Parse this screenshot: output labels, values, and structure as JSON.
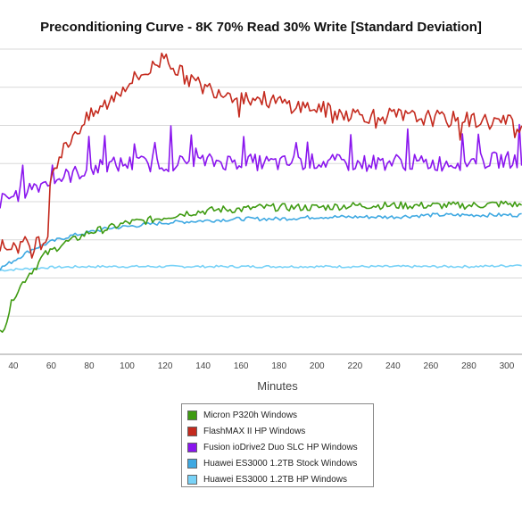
{
  "chart_data": {
    "type": "line",
    "title": "Preconditioning Curve - 8K 70% Read 30% Write [Standard Deviation]",
    "xlabel": "Minutes",
    "ylabel": "",
    "x_ticks": [
      "40",
      "60",
      "80",
      "100",
      "120",
      "140",
      "160",
      "180",
      "200",
      "220",
      "240",
      "260",
      "280",
      "300"
    ],
    "xlim": [
      33,
      308
    ],
    "ylim": [
      0,
      8
    ],
    "grid": true,
    "legend_position": "bottom-center",
    "series": [
      {
        "name": "Micron P320h Windows",
        "color": "#3f9b12",
        "points": [
          [
            33,
            0.6
          ],
          [
            36,
            0.8
          ],
          [
            40,
            1.5
          ],
          [
            44,
            1.8
          ],
          [
            48,
            2.1
          ],
          [
            52,
            2.3
          ],
          [
            56,
            2.6
          ],
          [
            60,
            2.7
          ],
          [
            66,
            2.9
          ],
          [
            72,
            3.0
          ],
          [
            80,
            3.2
          ],
          [
            90,
            3.3
          ],
          [
            100,
            3.45
          ],
          [
            110,
            3.5
          ],
          [
            120,
            3.6
          ],
          [
            130,
            3.7
          ],
          [
            140,
            3.75
          ],
          [
            150,
            3.8
          ],
          [
            160,
            3.8
          ],
          [
            170,
            3.85
          ],
          [
            180,
            3.85
          ],
          [
            190,
            3.85
          ],
          [
            200,
            3.85
          ],
          [
            220,
            3.9
          ],
          [
            240,
            3.9
          ],
          [
            260,
            3.9
          ],
          [
            280,
            3.9
          ],
          [
            300,
            3.95
          ],
          [
            308,
            3.9
          ]
        ],
        "noise": 0.1
      },
      {
        "name": "FlashMAX II HP Windows",
        "color": "#c42a1e",
        "points": [
          [
            33,
            2.8
          ],
          [
            40,
            2.85
          ],
          [
            50,
            2.9
          ],
          [
            58,
            3.0
          ],
          [
            59,
            4.5
          ],
          [
            62,
            5.0
          ],
          [
            66,
            5.3
          ],
          [
            72,
            5.8
          ],
          [
            80,
            6.2
          ],
          [
            90,
            6.6
          ],
          [
            100,
            7.1
          ],
          [
            110,
            7.4
          ],
          [
            116,
            7.6
          ],
          [
            120,
            7.9
          ],
          [
            125,
            7.5
          ],
          [
            130,
            7.3
          ],
          [
            140,
            7.0
          ],
          [
            150,
            6.9
          ],
          [
            160,
            6.75
          ],
          [
            170,
            6.7
          ],
          [
            180,
            6.6
          ],
          [
            190,
            6.5
          ],
          [
            200,
            6.45
          ],
          [
            210,
            6.35
          ],
          [
            220,
            6.3
          ],
          [
            230,
            6.25
          ],
          [
            240,
            6.25
          ],
          [
            250,
            6.2
          ],
          [
            260,
            6.2
          ],
          [
            270,
            6.15
          ],
          [
            280,
            6.15
          ],
          [
            290,
            6.1
          ],
          [
            300,
            6.1
          ],
          [
            308,
            6.0
          ]
        ],
        "noise": 0.22
      },
      {
        "name": "Fusion ioDrive2 Duo SLC HP Windows",
        "color": "#8a16ee",
        "points": [
          [
            33,
            4.0
          ],
          [
            40,
            4.15
          ],
          [
            50,
            4.4
          ],
          [
            60,
            4.55
          ],
          [
            70,
            4.7
          ],
          [
            80,
            4.85
          ],
          [
            90,
            4.95
          ],
          [
            100,
            5.0
          ],
          [
            120,
            5.0
          ],
          [
            140,
            5.05
          ],
          [
            160,
            5.05
          ],
          [
            180,
            5.0
          ],
          [
            200,
            5.05
          ],
          [
            220,
            5.0
          ],
          [
            240,
            5.05
          ],
          [
            260,
            5.0
          ],
          [
            280,
            5.05
          ],
          [
            300,
            5.1
          ],
          [
            308,
            5.1
          ]
        ],
        "noise": 0.22
      },
      {
        "name": "Huawei ES3000 1.2TB Stock Windows",
        "color": "#3fa9e2",
        "points": [
          [
            33,
            2.25
          ],
          [
            40,
            2.45
          ],
          [
            50,
            2.75
          ],
          [
            60,
            2.95
          ],
          [
            70,
            3.1
          ],
          [
            80,
            3.2
          ],
          [
            90,
            3.3
          ],
          [
            100,
            3.35
          ],
          [
            120,
            3.45
          ],
          [
            140,
            3.5
          ],
          [
            160,
            3.55
          ],
          [
            180,
            3.55
          ],
          [
            200,
            3.6
          ],
          [
            220,
            3.6
          ],
          [
            240,
            3.6
          ],
          [
            260,
            3.65
          ],
          [
            280,
            3.65
          ],
          [
            300,
            3.65
          ],
          [
            308,
            3.65
          ]
        ],
        "noise": 0.05
      },
      {
        "name": "Huawei ES3000 1.2TB HP Windows",
        "color": "#78d2f7",
        "points": [
          [
            33,
            2.2
          ],
          [
            50,
            2.25
          ],
          [
            60,
            2.28
          ],
          [
            80,
            2.3
          ],
          [
            100,
            2.3
          ],
          [
            120,
            2.3
          ],
          [
            140,
            2.3
          ],
          [
            160,
            2.3
          ],
          [
            180,
            2.3
          ],
          [
            200,
            2.3
          ],
          [
            220,
            2.3
          ],
          [
            240,
            2.3
          ],
          [
            260,
            2.3
          ],
          [
            280,
            2.3
          ],
          [
            300,
            2.32
          ],
          [
            308,
            2.35
          ]
        ],
        "noise": 0.03
      }
    ]
  }
}
